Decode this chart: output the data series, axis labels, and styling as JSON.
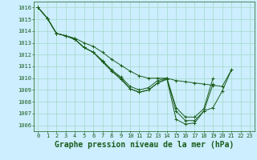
{
  "background_color": "#cceeff",
  "grid_color": "#aaddcc",
  "line_color": "#1a5c1a",
  "title": "Graphe pression niveau de la mer (hPa)",
  "title_fontsize": 7,
  "ylim": [
    1005.5,
    1016.5
  ],
  "xlim": [
    -0.5,
    23.5
  ],
  "yticks": [
    1006,
    1007,
    1008,
    1009,
    1010,
    1011,
    1012,
    1013,
    1014,
    1015,
    1016
  ],
  "xticks": [
    0,
    1,
    2,
    3,
    4,
    5,
    6,
    7,
    8,
    9,
    10,
    11,
    12,
    13,
    14,
    15,
    16,
    17,
    18,
    19,
    20,
    21,
    22,
    23
  ],
  "tick_fontsize": 5,
  "series": [
    [
      1016.0,
      1015.1,
      1013.8,
      1013.6,
      1013.3,
      1012.6,
      1012.2,
      1011.4,
      1010.6,
      1010.0,
      1009.1,
      1008.8,
      1009.0,
      1009.6,
      1009.9,
      1006.5,
      1006.1,
      1006.2,
      1007.2,
      1007.5,
      1008.9,
      1010.7
    ],
    [
      1016.0,
      1015.1,
      1013.8,
      1013.6,
      1013.3,
      1012.6,
      1012.2,
      1011.4,
      1010.6,
      1009.9,
      1009.1,
      1008.8,
      1009.0,
      1009.6,
      1010.0,
      1007.2,
      1006.4,
      1006.4,
      1007.2,
      1009.5
    ],
    [
      1016.0,
      1015.1,
      1013.8,
      1013.6,
      1013.3,
      1012.6,
      1012.2,
      1011.5,
      1010.7,
      1010.1,
      1009.3,
      1009.0,
      1009.2,
      1009.8,
      1010.0,
      1007.5,
      1006.7,
      1006.7,
      1007.4,
      1010.0
    ],
    [
      1016.0,
      1015.1,
      1013.8,
      1013.6,
      1013.4,
      1013.0,
      1012.7,
      1012.2,
      1011.6,
      1011.1,
      1010.6,
      1010.2,
      1010.0,
      1010.0,
      1010.0,
      1009.8,
      1009.7,
      1009.6,
      1009.5,
      1009.4,
      1009.3,
      1010.7
    ]
  ]
}
